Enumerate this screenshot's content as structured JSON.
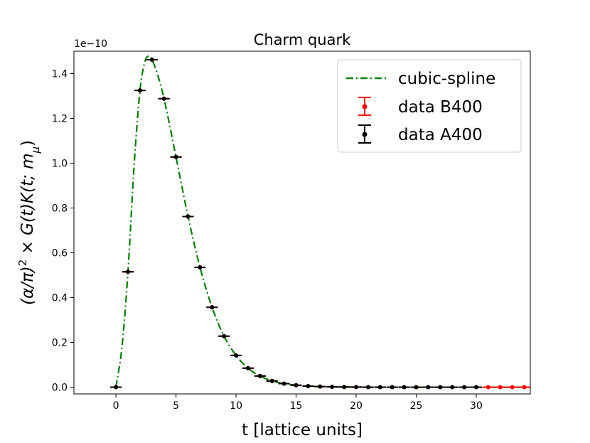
{
  "chart_data": {
    "type": "line",
    "title": "Charm quark",
    "xlabel": "t [lattice units]",
    "ylabel": "(α/π)² × G(t)K(t; m_μ)",
    "ylabel_parts": {
      "prefix": "(α/π)",
      "sup": "2",
      "middle": " × G(t)K(t; m",
      "sub": "μ",
      "suffix": ")"
    },
    "y_offset_text": "1e−10",
    "y_scale": 1e-10,
    "xlim": [
      -3.5,
      34.5
    ],
    "ylim": [
      -0.03,
      1.5
    ],
    "x_ticks": [
      0,
      5,
      10,
      15,
      20,
      25,
      30
    ],
    "x_tick_labels": [
      "0",
      "5",
      "10",
      "15",
      "20",
      "25",
      "30"
    ],
    "y_ticks": [
      0.0,
      0.2,
      0.4,
      0.6,
      0.8,
      1.0,
      1.2,
      1.4
    ],
    "y_tick_labels": [
      "0.0",
      "0.2",
      "0.4",
      "0.6",
      "0.8",
      "1.0",
      "1.2",
      "1.4"
    ],
    "legend_position": "upper right",
    "series": [
      {
        "name": "cubic-spline",
        "kind": "line",
        "style": "dash-dot",
        "color": "#008000",
        "x": [
          0,
          1,
          2,
          3,
          4,
          5,
          6,
          7,
          8,
          9,
          10,
          11,
          12,
          13,
          14,
          15,
          16,
          17,
          18,
          19,
          20,
          21,
          22,
          23,
          24,
          25,
          26,
          27,
          28,
          29,
          30,
          31,
          32,
          33,
          34
        ],
        "values": [
          0.0,
          0.515,
          1.325,
          1.462,
          1.288,
          1.028,
          0.762,
          0.535,
          0.357,
          0.228,
          0.142,
          0.085,
          0.05,
          0.028,
          0.016,
          0.009,
          0.005,
          0.003,
          0.0016,
          0.0009,
          0.0005,
          0.0003,
          0.00015,
          0.0001,
          5e-05,
          3e-05,
          0.0,
          0.0,
          0.0,
          0.0,
          0.0,
          0.0,
          0.0,
          0.0,
          0.0
        ]
      },
      {
        "name": "data B400",
        "kind": "errorbar",
        "color": "#ff0000",
        "x": [
          0,
          1,
          2,
          3,
          4,
          5,
          6,
          7,
          8,
          9,
          10,
          11,
          12,
          13,
          14,
          15,
          16,
          17,
          18,
          19,
          20,
          21,
          22,
          23,
          24,
          25,
          26,
          27,
          28,
          29,
          30,
          31,
          32,
          33,
          34
        ],
        "values": [
          0.0,
          0.515,
          1.325,
          1.462,
          1.288,
          1.028,
          0.762,
          0.535,
          0.357,
          0.228,
          0.142,
          0.085,
          0.05,
          0.028,
          0.016,
          0.009,
          0.005,
          0.003,
          0.0016,
          0.0009,
          0.0005,
          0.0003,
          0.00015,
          0.0001,
          5e-05,
          3e-05,
          0.0,
          0.0,
          0.0,
          0.0,
          0.0,
          0.0,
          0.0,
          0.0,
          0.0
        ]
      },
      {
        "name": "data A400",
        "kind": "errorbar",
        "color": "#000000",
        "x": [
          0,
          1,
          2,
          3,
          4,
          5,
          6,
          7,
          8,
          9,
          10,
          11,
          12,
          13,
          14,
          15,
          16,
          17,
          18,
          19,
          20,
          21,
          22,
          23,
          24,
          25,
          26,
          27,
          28,
          29,
          30
        ],
        "values": [
          0.0,
          0.515,
          1.325,
          1.462,
          1.288,
          1.028,
          0.762,
          0.535,
          0.357,
          0.228,
          0.142,
          0.085,
          0.05,
          0.028,
          0.016,
          0.009,
          0.005,
          0.003,
          0.0016,
          0.0009,
          0.0005,
          0.0003,
          0.00015,
          0.0001,
          5e-05,
          3e-05,
          0.0,
          0.0,
          0.0,
          0.0,
          0.0
        ]
      }
    ],
    "spline_knots": {
      "x": [
        0,
        0.5,
        1,
        1.5,
        2,
        2.3,
        2.6,
        2.8,
        3,
        3.5,
        4,
        5,
        6,
        7,
        8,
        9,
        10,
        11,
        12,
        13,
        14,
        15,
        16,
        18,
        20,
        25,
        30,
        34
      ],
      "values": [
        0.0,
        0.18,
        0.515,
        0.98,
        1.325,
        1.43,
        1.475,
        1.478,
        1.462,
        1.39,
        1.288,
        1.028,
        0.762,
        0.535,
        0.357,
        0.228,
        0.142,
        0.085,
        0.05,
        0.028,
        0.016,
        0.009,
        0.005,
        0.0016,
        0.0005,
        3e-05,
        0.0,
        0.0
      ]
    }
  }
}
